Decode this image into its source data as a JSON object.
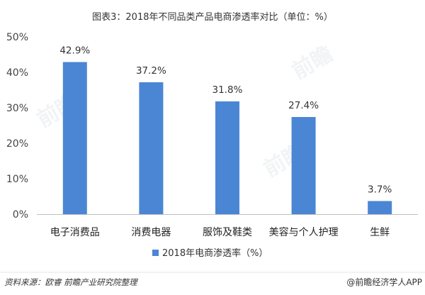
{
  "chart_data": {
    "type": "bar",
    "title": "图表3：2018年不同品类产品电商渗透率对比（单位：%）",
    "categories": [
      "电子消费品",
      "消费电器",
      "服饰及鞋类",
      "美容与个人护理",
      "生鲜"
    ],
    "series": [
      {
        "name": "2018年电商渗透率（%）",
        "values": [
          42.9,
          37.2,
          31.8,
          27.4,
          3.7
        ],
        "color": "#4a86d4"
      }
    ],
    "value_labels": [
      "42.9%",
      "37.2%",
      "31.8%",
      "27.4%",
      "3.7%"
    ],
    "ylim": [
      0,
      50
    ],
    "yticks": [
      0,
      10,
      20,
      30,
      40,
      50
    ],
    "ytick_labels": [
      "0%",
      "10%",
      "20%",
      "30%",
      "40%",
      "50%"
    ],
    "xlabel": "",
    "ylabel": "",
    "grid": false,
    "legend_position": "bottom"
  },
  "footer": {
    "source": "资料来源：欧睿 前瞻产业研究院整理",
    "brand": "@前瞻经济学人APP"
  },
  "colors": {
    "bar": "#4a86d4",
    "axis": "#bfbfbf"
  }
}
